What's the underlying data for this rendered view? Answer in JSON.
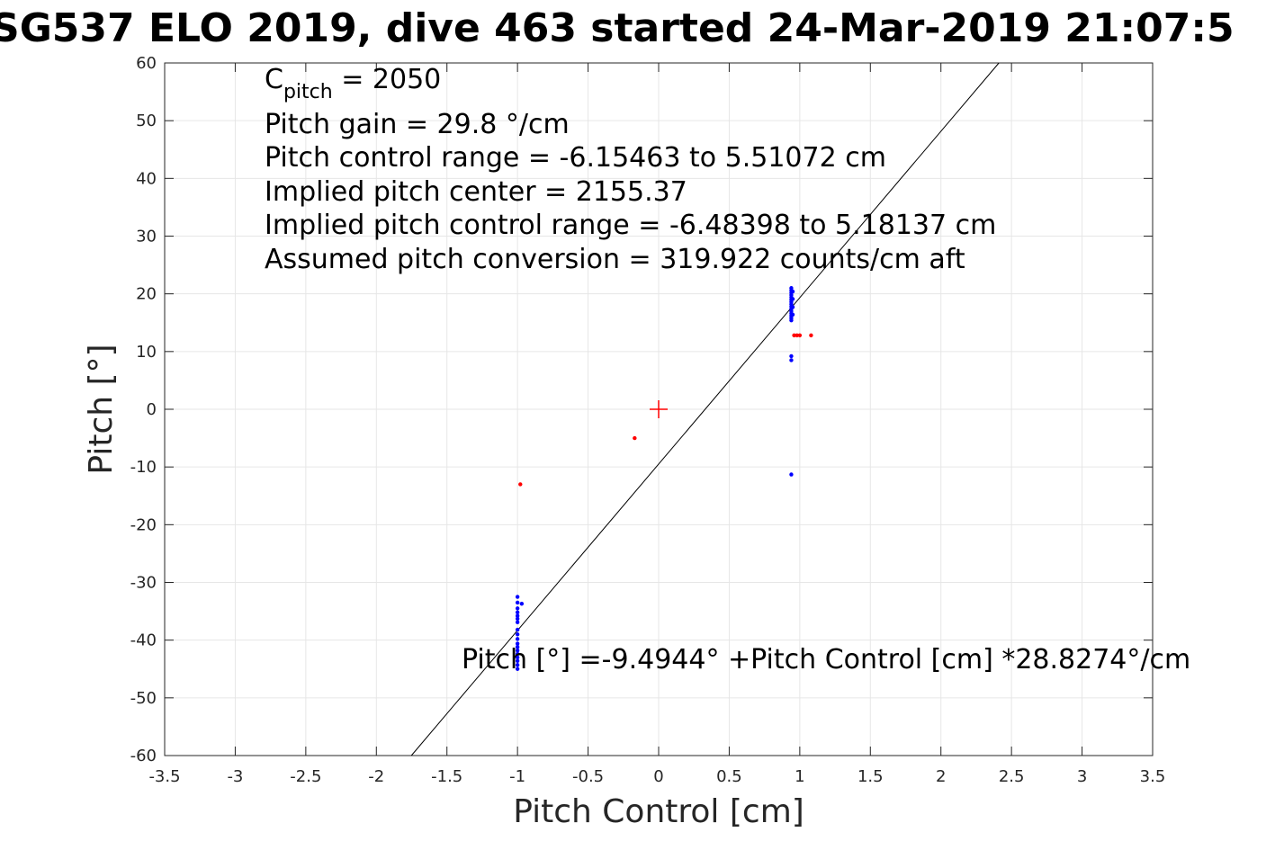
{
  "chart_data": {
    "type": "scatter",
    "title": "SG537 ELO 2019, dive 463 started 24-Mar-2019 21:07:5",
    "xlabel": "Pitch Control [cm]",
    "ylabel": "Pitch [°]",
    "xlim": [
      -3.5,
      3.5
    ],
    "ylim": [
      -60,
      60
    ],
    "xticks": [
      -3.5,
      -3,
      -2.5,
      -2,
      -1.5,
      -1,
      -0.5,
      0,
      0.5,
      1,
      1.5,
      2,
      2.5,
      3,
      3.5
    ],
    "yticks": [
      -60,
      -50,
      -40,
      -30,
      -20,
      -10,
      0,
      10,
      20,
      30,
      40,
      50,
      60
    ],
    "xtick_labels": [
      "-3.5",
      "-3",
      "-2.5",
      "-2",
      "-1.5",
      "-1",
      "-0.5",
      "0",
      "0.5",
      "1",
      "1.5",
      "2",
      "2.5",
      "3",
      "3.5"
    ],
    "ytick_labels": [
      "-60",
      "-50",
      "-40",
      "-30",
      "-20",
      "-10",
      "0",
      "10",
      "20",
      "30",
      "40",
      "50",
      "60"
    ],
    "grid": true,
    "colors": {
      "blue": "#0000ff",
      "red": "#ff0000",
      "line": "#000000",
      "grid": "#e6e6e6"
    },
    "series": [
      {
        "color": "#0000ff",
        "points": [
          [
            -1.0,
            -32.5
          ],
          [
            -1.0,
            -33.5
          ],
          [
            -1.0,
            -34.5
          ],
          [
            -1.0,
            -35.2
          ],
          [
            -1.0,
            -35.8
          ],
          [
            -1.0,
            -36.3
          ],
          [
            -1.0,
            -36.9
          ],
          [
            -1.0,
            -38.2
          ],
          [
            -1.0,
            -39.0
          ],
          [
            -1.0,
            -39.8
          ],
          [
            -1.0,
            -40.6
          ],
          [
            -1.0,
            -41.2
          ],
          [
            -1.0,
            -41.8
          ],
          [
            -1.0,
            -42.4
          ],
          [
            -1.0,
            -43.0
          ],
          [
            -1.0,
            -43.6
          ],
          [
            -1.0,
            -44.3
          ],
          [
            -1.0,
            -45.0
          ],
          [
            -0.97,
            -33.7
          ],
          [
            0.94,
            21.0
          ],
          [
            0.94,
            20.6
          ],
          [
            0.94,
            20.2
          ],
          [
            0.94,
            19.8
          ],
          [
            0.94,
            19.4
          ],
          [
            0.94,
            19.0
          ],
          [
            0.94,
            18.6
          ],
          [
            0.94,
            18.2
          ],
          [
            0.94,
            17.8
          ],
          [
            0.94,
            17.4
          ],
          [
            0.94,
            17.0
          ],
          [
            0.94,
            16.6
          ],
          [
            0.94,
            16.2
          ],
          [
            0.94,
            15.8
          ],
          [
            0.94,
            15.4
          ],
          [
            0.95,
            20.4
          ],
          [
            0.95,
            19.1
          ],
          [
            0.95,
            17.7
          ],
          [
            0.95,
            16.4
          ],
          [
            0.94,
            9.2
          ],
          [
            0.94,
            8.5
          ],
          [
            0.94,
            -11.3
          ]
        ]
      },
      {
        "color": "#ff0000",
        "points": [
          [
            -0.98,
            -13.0
          ],
          [
            -0.17,
            -5.0
          ],
          [
            0.96,
            12.8
          ],
          [
            0.98,
            12.8
          ],
          [
            1.0,
            12.8
          ],
          [
            1.08,
            12.8
          ]
        ]
      }
    ],
    "center_marker": {
      "x": 0,
      "y": 0,
      "color": "#ff0000"
    },
    "fit_line": {
      "intercept": -9.4944,
      "slope": 28.8274
    },
    "annotations": {
      "c_pitch_main": "C",
      "c_pitch_sub": "pitch",
      "c_pitch_value": " = 2050",
      "pitch_gain": "Pitch gain = 29.8 °/cm",
      "pitch_control_range": "Pitch control range = -6.15463 to 5.51072 cm",
      "implied_center": "Implied pitch center = 2155.37",
      "implied_range": "Implied pitch control range = -6.48398 to 5.18137 cm",
      "assumed_conversion": "Assumed pitch conversion = 319.922 counts/cm aft",
      "fit_equation": "Pitch [°] =-9.4944° +Pitch Control [cm] *28.8274°/cm"
    }
  }
}
